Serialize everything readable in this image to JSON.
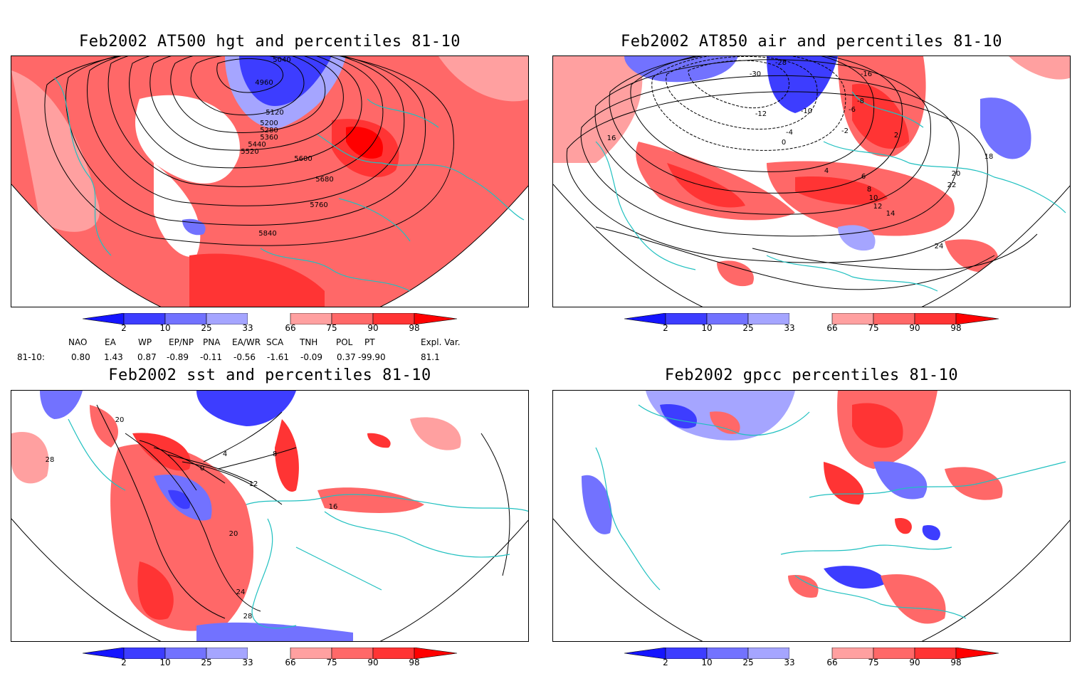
{
  "panels": [
    {
      "title": "Feb2002 AT500 hgt and percentiles 81-10",
      "labels": [
        "4960",
        "5040",
        "5120",
        "5200",
        "5280",
        "5360",
        "5440",
        "5520",
        "5600",
        "5680",
        "5760",
        "5840"
      ]
    },
    {
      "title": "Feb2002 AT850 air and percentiles 81-10",
      "labels": [
        "-28",
        "-30",
        "-16",
        "-10",
        "-12",
        "-8",
        "-6",
        "-4",
        "-2",
        "0",
        "2",
        "4",
        "6",
        "8",
        "10",
        "12",
        "14",
        "16",
        "18",
        "20",
        "22",
        "24"
      ]
    },
    {
      "title": "Feb2002 sst and percentiles 81-10",
      "labels": [
        "28",
        "20",
        "0",
        "4",
        "8",
        "12",
        "16",
        "20",
        "24",
        "28"
      ]
    },
    {
      "title": "Feb2002 gpcc percentiles 81-10",
      "labels": []
    }
  ],
  "colorbar": {
    "ticks": [
      "2",
      "10",
      "25",
      "33",
      "66",
      "75",
      "90",
      "98"
    ],
    "colors": [
      "#1515ff",
      "#3d3dff",
      "#7272ff",
      "#a5a5ff",
      "#ffffff",
      "#ffa0a0",
      "#ff6868",
      "#ff3434",
      "#ff0000"
    ]
  },
  "indices": {
    "header": [
      "NAO",
      "EA",
      "WP",
      "EP/NP",
      "PNA",
      "EA/WR",
      "SCA",
      "TNH",
      "POL",
      "PT",
      "Expl. Var."
    ],
    "row_label": "81-10:",
    "values": [
      "0.80",
      "1.43",
      "0.87",
      "-0.89",
      "-0.11",
      "-0.56",
      "-1.61",
      "-0.09",
      "0.37",
      "-99.90",
      "81.1"
    ]
  },
  "colors": {
    "coast": "#20c0c0",
    "warm": "#ff6868",
    "cold": "#5555ff",
    "contour": "#000000"
  }
}
